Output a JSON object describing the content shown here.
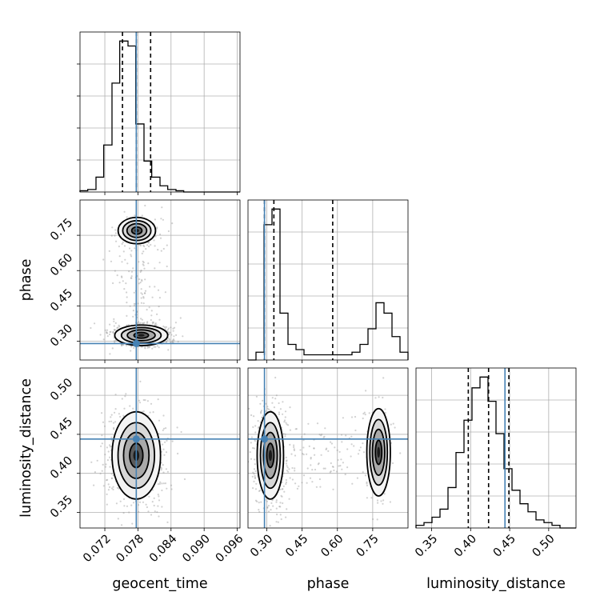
{
  "chart_data": {
    "type": "corner",
    "parameters": [
      {
        "name": "geocent_time",
        "label": "geocent_time",
        "range": [
          0.0675,
          0.0965
        ],
        "ticks": [
          0.072,
          0.078,
          0.084,
          0.09,
          0.096
        ],
        "tick_labels": [
          "0.072",
          "0.078",
          "0.084",
          "0.090",
          "0.096"
        ],
        "truth": 0.0777,
        "quantiles": [
          0.0752,
          0.0777,
          0.0803
        ],
        "histogram": {
          "bin_edges": [
            0.0675,
            0.0689,
            0.0704,
            0.0718,
            0.0733,
            0.0747,
            0.0762,
            0.0776,
            0.0791,
            0.0805,
            0.082,
            0.0834,
            0.0849,
            0.0863,
            0.0878,
            0.0892,
            0.0907,
            0.0921,
            0.0936,
            0.095,
            0.0965
          ],
          "counts": [
            1,
            2,
            12,
            38,
            88,
            122,
            118,
            55,
            25,
            12,
            5,
            2,
            1,
            0,
            0,
            0,
            0,
            0,
            0,
            0
          ]
        }
      },
      {
        "name": "phase",
        "label": "phase",
        "range": [
          0.22,
          0.9
        ],
        "ticks": [
          0.3,
          0.45,
          0.6,
          0.75
        ],
        "tick_labels": [
          "0.30",
          "0.45",
          "0.60",
          "0.75"
        ],
        "truth": 0.29,
        "quantiles": [
          0.29,
          0.33,
          0.58
        ],
        "histogram": {
          "bin_edges": [
            0.22,
            0.254,
            0.288,
            0.322,
            0.356,
            0.39,
            0.424,
            0.458,
            0.492,
            0.526,
            0.56,
            0.594,
            0.628,
            0.662,
            0.696,
            0.73,
            0.764,
            0.798,
            0.832,
            0.866,
            0.9
          ],
          "counts": [
            0,
            3,
            52,
            58,
            18,
            6,
            4,
            2,
            2,
            2,
            2,
            2,
            2,
            3,
            6,
            12,
            22,
            18,
            9,
            3
          ]
        }
      },
      {
        "name": "luminosity_distance",
        "label": "luminosity_distance",
        "range": [
          0.33,
          0.535
        ],
        "ticks": [
          0.35,
          0.4,
          0.45,
          0.5
        ],
        "tick_labels": [
          "0.35",
          "0.40",
          "0.45",
          "0.50"
        ],
        "truth": 0.444,
        "quantiles": [
          0.397,
          0.423,
          0.449
        ],
        "histogram": {
          "bin_edges": [
            0.33,
            0.34025,
            0.3505,
            0.36075,
            0.371,
            0.38125,
            0.3915,
            0.40175,
            0.412,
            0.42225,
            0.4325,
            0.44275,
            0.453,
            0.46325,
            0.4735,
            0.48375,
            0.494,
            0.50425,
            0.5145,
            0.52475,
            0.535
          ],
          "counts": [
            1,
            2,
            4,
            7,
            15,
            28,
            40,
            52,
            56,
            47,
            35,
            22,
            14,
            9,
            6,
            3,
            2,
            1,
            0,
            0
          ]
        }
      }
    ],
    "truths": [
      0.0777,
      0.29,
      0.444
    ],
    "joint_modes": [
      {
        "pair": [
          "geocent_time",
          "phase"
        ],
        "modes": [
          {
            "center": [
              0.0786,
              0.325
            ],
            "spread": [
              0.0024,
              0.022
            ],
            "weight": 0.7
          },
          {
            "center": [
              0.0778,
              0.77
            ],
            "spread": [
              0.0017,
              0.028
            ],
            "weight": 0.25
          }
        ]
      },
      {
        "pair": [
          "geocent_time",
          "luminosity_distance"
        ],
        "modes": [
          {
            "center": [
              0.0777,
              0.423
            ],
            "spread": [
              0.0022,
              0.028
            ],
            "weight": 1.0
          }
        ]
      },
      {
        "pair": [
          "phase",
          "luminosity_distance"
        ],
        "modes": [
          {
            "center": [
              0.315,
              0.423
            ],
            "spread": [
              0.028,
              0.028
            ],
            "weight": 0.75
          },
          {
            "center": [
              0.775,
              0.427
            ],
            "spread": [
              0.025,
              0.028
            ],
            "weight": 0.25
          }
        ]
      }
    ],
    "grid": true,
    "quantile_style": "dashed",
    "truth_color": "#4682b4"
  }
}
